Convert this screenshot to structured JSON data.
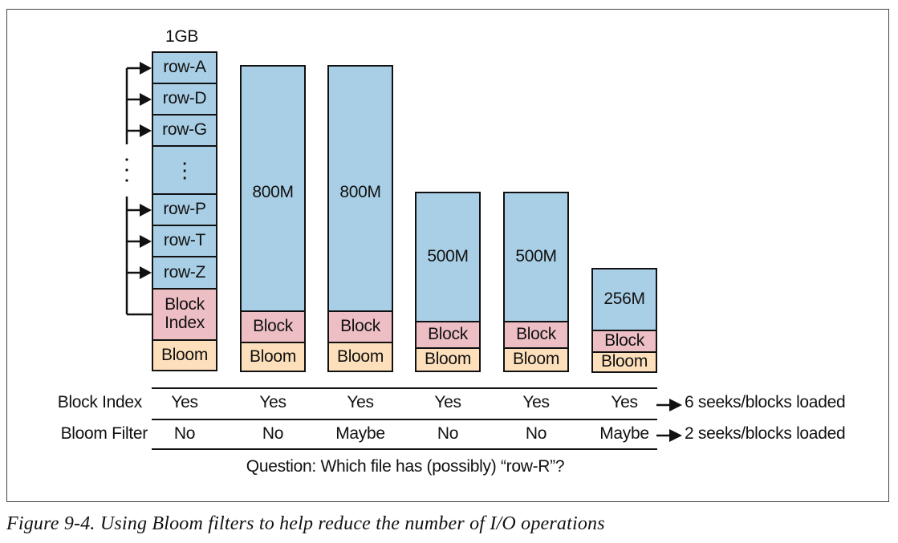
{
  "figure": {
    "caption": "Figure 9-4. Using Bloom filters to help reduce the number of I/O operations",
    "size_label": "1GB",
    "first_file": {
      "rows": [
        "row-A",
        "row-D",
        "row-G",
        "⋮",
        "row-P",
        "row-T",
        "row-Z"
      ],
      "block": "Block Index",
      "bloom": "Bloom"
    },
    "files": [
      {
        "size": "800M",
        "block": "Block",
        "bloom": "Bloom"
      },
      {
        "size": "800M",
        "block": "Block",
        "bloom": "Bloom"
      },
      {
        "size": "500M",
        "block": "Block",
        "bloom": "Bloom"
      },
      {
        "size": "500M",
        "block": "Block",
        "bloom": "Bloom"
      },
      {
        "size": "256M",
        "block": "Block",
        "bloom": "Bloom"
      }
    ],
    "table": {
      "rows": [
        {
          "label": "Block Index",
          "values": [
            "Yes",
            "Yes",
            "Yes",
            "Yes",
            "Yes",
            "Yes"
          ],
          "result": "6 seeks/blocks loaded"
        },
        {
          "label": "Bloom Filter",
          "values": [
            "No",
            "No",
            "Maybe",
            "No",
            "No",
            "Maybe"
          ],
          "result": "2 seeks/blocks loaded"
        }
      ],
      "question": "Question: Which file has (possibly) “row-R”?"
    },
    "colors": {
      "data": "#a9cfe6",
      "block": "#edbfc4",
      "bloom": "#fde0bb",
      "line": "#111111"
    }
  }
}
